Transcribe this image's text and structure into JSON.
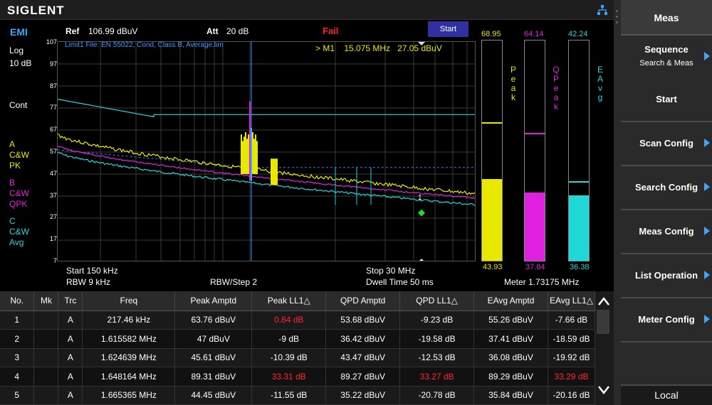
{
  "brand": "SIGLENT",
  "header": {
    "mode": "EMI",
    "ref_label": "Ref",
    "ref_value": "106.99 dBuV",
    "att_label": "Att",
    "att_value": "20 dB",
    "status": "Fail",
    "start_button": "Start"
  },
  "limit_info": "Limit1 File: EN 55022, Cond, Class B, Average.lim",
  "marker_info": {
    "label": "> M1",
    "freq": "15.075 MHz",
    "ampl": "27.05 dBuV",
    "marker_num": "1"
  },
  "scale": {
    "type": "Log",
    "div": "10 dB",
    "sweep": "Cont"
  },
  "traces": [
    {
      "letter": "A",
      "line1": "C&W",
      "line2": "PK",
      "color": "#e8e800"
    },
    {
      "letter": "B",
      "line1": "C&W",
      "line2": "QPK",
      "color": "#e020e0"
    },
    {
      "letter": "C",
      "line1": "C&W",
      "line2": "Avg",
      "color": "#20d8d8"
    }
  ],
  "y_ticks": [
    "107",
    "97",
    "87",
    "77",
    "67",
    "57",
    "47",
    "37",
    "27",
    "17",
    "7"
  ],
  "footer": {
    "start": "Start  150 kHz",
    "rbw": "RBW  9 kHz",
    "rbw_step": "RBW/Step   2",
    "stop": "Stop  30 MHz",
    "dwell": "Dwell Time   50 ms",
    "meter": "Meter  1.73175 MHz"
  },
  "meters": [
    {
      "name": "Peak",
      "top": "68.95",
      "bottom": "43.93",
      "color": "#e8e800",
      "fill_db": 43.93,
      "max_db": 68.95
    },
    {
      "name": "QPeak",
      "top": "64.14",
      "bottom": "37.84",
      "color": "#e020e0",
      "fill_db": 37.84,
      "max_db": 64.14
    },
    {
      "name": "EAvg",
      "top": "42.24",
      "bottom": "36.38",
      "color": "#20d8d8",
      "fill_db": 36.38,
      "max_db": 42.24
    }
  ],
  "menu": {
    "title": "Meas",
    "items": [
      {
        "label": "Sequence",
        "sub": "Search & Meas",
        "arrow": true
      },
      {
        "label": "Start",
        "sub": "",
        "arrow": false
      },
      {
        "label": "Scan Config",
        "sub": "",
        "arrow": true
      },
      {
        "label": "Search Config",
        "sub": "",
        "arrow": true
      },
      {
        "label": "Meas Config",
        "sub": "",
        "arrow": true
      },
      {
        "label": "List Operation",
        "sub": "",
        "arrow": true
      },
      {
        "label": "Meter Config",
        "sub": "",
        "arrow": true
      }
    ],
    "local": "Local"
  },
  "table": {
    "headers": [
      "No.",
      "Mk",
      "Trc",
      "Freq",
      "Peak Amptd",
      "Peak LL1△",
      "QPD Amptd",
      "QPD LL1△",
      "EAvg Amptd",
      "EAvg LL1△"
    ],
    "rows": [
      [
        "1",
        "",
        "A",
        "217.46 kHz",
        "63.76 dBuV",
        "0.84 dB",
        "53.68 dBuV",
        "-9.23 dB",
        "55.26 dBuV",
        "-7.66 dB"
      ],
      [
        "2",
        "",
        "A",
        "1.615582 MHz",
        "47 dBuV",
        "-9 dB",
        "36.42 dBuV",
        "-19.58 dB",
        "37.41 dBuV",
        "-18.59 dB"
      ],
      [
        "3",
        "",
        "A",
        "1.624639 MHz",
        "45.61 dBuV",
        "-10.39 dB",
        "43.47 dBuV",
        "-12.53 dB",
        "36.08 dBuV",
        "-19.92 dB"
      ],
      [
        "4",
        "",
        "A",
        "1.648164 MHz",
        "89.31 dBuV",
        "33.31 dB",
        "89.27 dBuV",
        "33.27 dB",
        "89.29 dBuV",
        "33.29 dB"
      ],
      [
        "5",
        "",
        "A",
        "1.665365 MHz",
        "44.45 dBuV",
        "-11.55 dB",
        "35.22 dBuV",
        "-20.78 dB",
        "35.84 dBuV",
        "-20.16 dB"
      ]
    ],
    "red_cells": [
      [
        0,
        5
      ],
      [
        3,
        5
      ],
      [
        3,
        7
      ],
      [
        3,
        9
      ]
    ]
  },
  "colors": {
    "accent": "#3aa6ff",
    "fail": "#ff2020",
    "peak": "#e8e800",
    "qpeak": "#e020e0",
    "avg": "#20d8d8",
    "limit": "#20d8d8"
  }
}
